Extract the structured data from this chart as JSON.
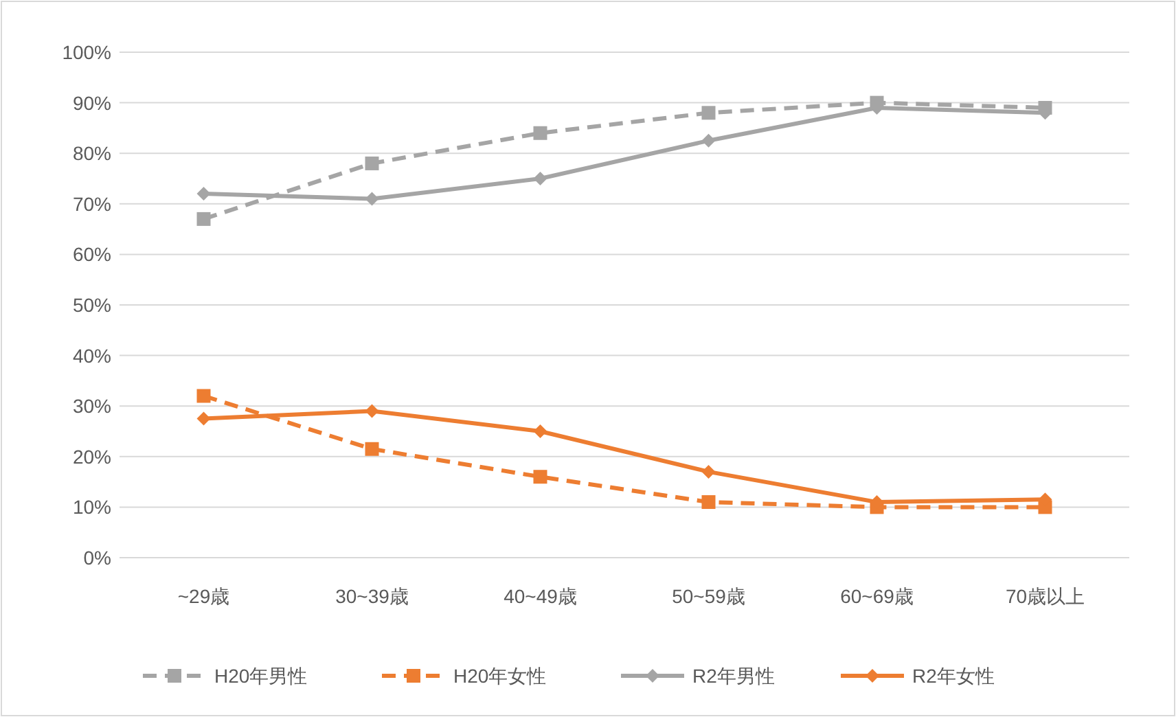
{
  "chart_data": {
    "type": "line",
    "categories": [
      "~29歳",
      "30~39歳",
      "40~49歳",
      "50~59歳",
      "60~69歳",
      "70歳以上"
    ],
    "series": [
      {
        "name": "H20年男性",
        "color": "#a5a5a5",
        "line_style": "dashed",
        "marker": "square",
        "values": [
          67,
          78,
          84,
          88,
          90,
          89
        ]
      },
      {
        "name": "H20年女性",
        "color": "#ed7d31",
        "line_style": "dashed",
        "marker": "square",
        "values": [
          32,
          21.5,
          16,
          11,
          10,
          10
        ]
      },
      {
        "name": "R2年男性",
        "color": "#a5a5a5",
        "line_style": "solid",
        "marker": "diamond",
        "values": [
          72,
          71,
          75,
          82.5,
          89,
          88
        ]
      },
      {
        "name": "R2年女性",
        "color": "#ed7d31",
        "line_style": "solid",
        "marker": "diamond",
        "values": [
          27.5,
          29,
          25,
          17,
          11,
          11.5
        ]
      }
    ],
    "ylim": [
      0,
      100
    ],
    "yticks": [
      {
        "value": 0,
        "label": "0%"
      },
      {
        "value": 10,
        "label": "10%"
      },
      {
        "value": 20,
        "label": "20%"
      },
      {
        "value": 30,
        "label": "30%"
      },
      {
        "value": 40,
        "label": "40%"
      },
      {
        "value": 50,
        "label": "50%"
      },
      {
        "value": 60,
        "label": "60%"
      },
      {
        "value": 70,
        "label": "70%"
      },
      {
        "value": 80,
        "label": "80%"
      },
      {
        "value": 90,
        "label": "90%"
      },
      {
        "value": 100,
        "label": "100%"
      }
    ],
    "grid": "y",
    "legend": "bottom"
  }
}
